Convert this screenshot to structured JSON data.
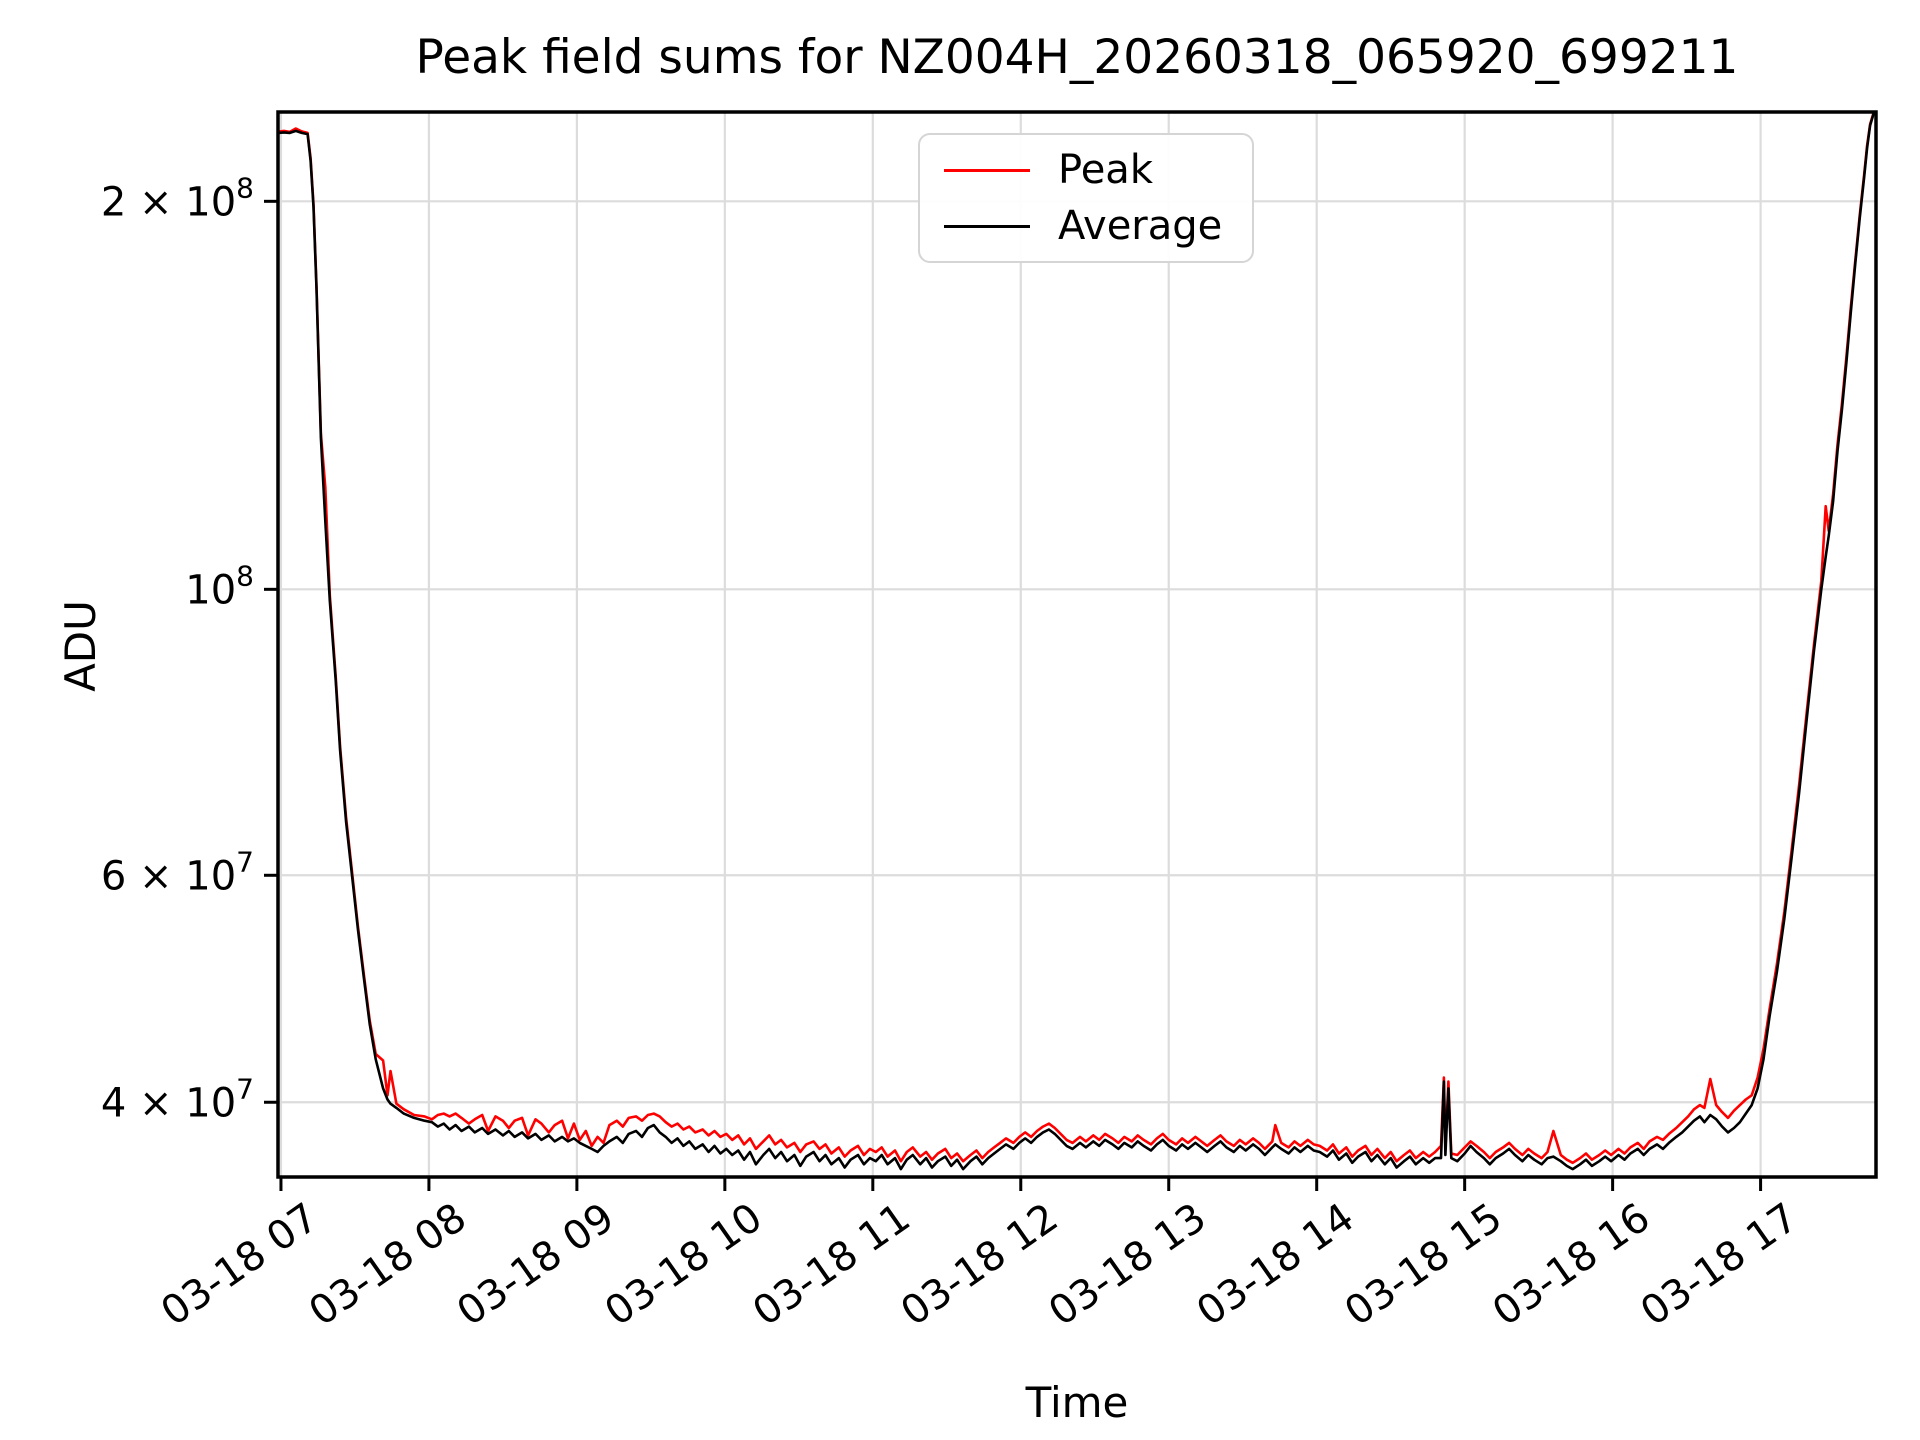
{
  "figure": {
    "title": "Peak field sums for NZ004H_20260318_065920_699211"
  },
  "axes": {
    "xlabel": "Time",
    "ylabel": "ADU"
  },
  "legend": {
    "entries": [
      {
        "label": "Peak",
        "color": "#ff0000"
      },
      {
        "label": "Average",
        "color": "#000000"
      }
    ]
  },
  "colors": {
    "peak_line": "#ff0000",
    "average_line": "#000000",
    "grid": "#dcdcdc",
    "spine": "#000000",
    "background": "#ffffff"
  },
  "chart_data": {
    "type": "line",
    "title": "Peak field sums for NZ004H_20260318_065920_699211",
    "xlabel": "Time",
    "ylabel": "ADU",
    "yscale": "log",
    "grid": true,
    "legend_position": "upper center",
    "x_unit": "hour of day on 2026-03-18",
    "xlim": [
      6.98,
      17.78
    ],
    "ylim": [
      35000000,
      234600000
    ],
    "x_ticks": [
      {
        "t": 7,
        "label": "03-18 07"
      },
      {
        "t": 8,
        "label": "03-18 08"
      },
      {
        "t": 9,
        "label": "03-18 09"
      },
      {
        "t": 10,
        "label": "03-18 10"
      },
      {
        "t": 11,
        "label": "03-18 11"
      },
      {
        "t": 12,
        "label": "03-18 12"
      },
      {
        "t": 13,
        "label": "03-18 13"
      },
      {
        "t": 14,
        "label": "03-18 14"
      },
      {
        "t": 15,
        "label": "03-18 15"
      },
      {
        "t": 16,
        "label": "03-18 16"
      },
      {
        "t": 17,
        "label": "03-18 17"
      }
    ],
    "y_ticks": [
      {
        "value": 200000000,
        "label": "2 × 10⁸",
        "base": "2 × 10",
        "exp": "8"
      },
      {
        "value": 100000000,
        "label": "10⁸",
        "base": "10",
        "exp": "8"
      },
      {
        "value": 60000000,
        "label": "6 × 10⁷",
        "base": "6 × 10",
        "exp": "7"
      },
      {
        "value": 40000000,
        "label": "4 × 10⁷",
        "base": "4 × 10",
        "exp": "7"
      }
    ],
    "value_scale": 10000000,
    "columns": [
      "time_hours",
      "average",
      "peak"
    ],
    "series": [
      {
        "name": "Peak",
        "color": "#ff0000",
        "column": 2
      },
      {
        "name": "Average",
        "color": "#000000",
        "column": 1
      }
    ],
    "points": [
      [
        6.98,
        22.6,
        22.65
      ],
      [
        7.02,
        22.62,
        22.68
      ],
      [
        7.06,
        22.6,
        22.64
      ],
      [
        7.1,
        22.68,
        22.78
      ],
      [
        7.14,
        22.6,
        22.66
      ],
      [
        7.18,
        22.55,
        22.6
      ],
      [
        7.2,
        21.5,
        21.6
      ],
      [
        7.22,
        19.8,
        19.9
      ],
      [
        7.24,
        17.1,
        17.2
      ],
      [
        7.27,
        13.1,
        13.2
      ],
      [
        7.3,
        11.3,
        12.0
      ],
      [
        7.33,
        9.8,
        9.9
      ],
      [
        7.37,
        8.5,
        8.56
      ],
      [
        7.4,
        7.5,
        7.55
      ],
      [
        7.44,
        6.6,
        6.65
      ],
      [
        7.48,
        6.0,
        6.04
      ],
      [
        7.52,
        5.45,
        5.48
      ],
      [
        7.56,
        5.0,
        5.03
      ],
      [
        7.6,
        4.6,
        4.63
      ],
      [
        7.64,
        4.32,
        4.36
      ],
      [
        7.69,
        4.1,
        4.31
      ],
      [
        7.72,
        4.02,
        4.05
      ],
      [
        7.74,
        3.99,
        4.23
      ],
      [
        7.78,
        3.96,
        3.99
      ],
      [
        7.83,
        3.92,
        3.95
      ],
      [
        7.9,
        3.89,
        3.91
      ],
      [
        7.97,
        3.87,
        3.9
      ],
      [
        8.02,
        3.86,
        3.88
      ],
      [
        8.06,
        3.83,
        3.91
      ],
      [
        8.1,
        3.85,
        3.92
      ],
      [
        8.14,
        3.81,
        3.9
      ],
      [
        8.18,
        3.84,
        3.92
      ],
      [
        8.22,
        3.8,
        3.89
      ],
      [
        8.27,
        3.83,
        3.85
      ],
      [
        8.31,
        3.79,
        3.88
      ],
      [
        8.36,
        3.82,
        3.91
      ],
      [
        8.4,
        3.78,
        3.8
      ],
      [
        8.45,
        3.81,
        3.9
      ],
      [
        8.5,
        3.77,
        3.87
      ],
      [
        8.54,
        3.8,
        3.82
      ],
      [
        8.58,
        3.76,
        3.87
      ],
      [
        8.63,
        3.79,
        3.89
      ],
      [
        8.67,
        3.75,
        3.77
      ],
      [
        8.72,
        3.78,
        3.88
      ],
      [
        8.76,
        3.74,
        3.85
      ],
      [
        8.81,
        3.77,
        3.79
      ],
      [
        8.85,
        3.73,
        3.84
      ],
      [
        8.9,
        3.76,
        3.87
      ],
      [
        8.94,
        3.73,
        3.75
      ],
      [
        8.98,
        3.75,
        3.85
      ],
      [
        9.02,
        3.72,
        3.74
      ],
      [
        9.06,
        3.7,
        3.8
      ],
      [
        9.1,
        3.68,
        3.7
      ],
      [
        9.14,
        3.66,
        3.76
      ],
      [
        9.18,
        3.7,
        3.72
      ],
      [
        9.22,
        3.73,
        3.84
      ],
      [
        9.27,
        3.76,
        3.87
      ],
      [
        9.31,
        3.72,
        3.83
      ],
      [
        9.35,
        3.78,
        3.89
      ],
      [
        9.4,
        3.8,
        3.9
      ],
      [
        9.44,
        3.76,
        3.87
      ],
      [
        9.48,
        3.82,
        3.91
      ],
      [
        9.52,
        3.84,
        3.92
      ],
      [
        9.56,
        3.79,
        3.9
      ],
      [
        9.6,
        3.76,
        3.86
      ],
      [
        9.64,
        3.72,
        3.83
      ],
      [
        9.68,
        3.75,
        3.85
      ],
      [
        9.72,
        3.7,
        3.81
      ],
      [
        9.76,
        3.73,
        3.83
      ],
      [
        9.8,
        3.68,
        3.79
      ],
      [
        9.85,
        3.71,
        3.81
      ],
      [
        9.89,
        3.66,
        3.77
      ],
      [
        9.93,
        3.7,
        3.8
      ],
      [
        9.97,
        3.65,
        3.76
      ],
      [
        10.01,
        3.68,
        3.78
      ],
      [
        10.05,
        3.64,
        3.74
      ],
      [
        10.09,
        3.67,
        3.77
      ],
      [
        10.13,
        3.61,
        3.71
      ],
      [
        10.17,
        3.66,
        3.75
      ],
      [
        10.21,
        3.58,
        3.68
      ],
      [
        10.26,
        3.64,
        3.73
      ],
      [
        10.3,
        3.68,
        3.77
      ],
      [
        10.34,
        3.62,
        3.71
      ],
      [
        10.38,
        3.66,
        3.74
      ],
      [
        10.42,
        3.6,
        3.69
      ],
      [
        10.47,
        3.64,
        3.72
      ],
      [
        10.51,
        3.57,
        3.66
      ],
      [
        10.55,
        3.63,
        3.71
      ],
      [
        10.6,
        3.66,
        3.73
      ],
      [
        10.64,
        3.6,
        3.68
      ],
      [
        10.68,
        3.64,
        3.71
      ],
      [
        10.72,
        3.58,
        3.65
      ],
      [
        10.77,
        3.62,
        3.69
      ],
      [
        10.81,
        3.56,
        3.63
      ],
      [
        10.85,
        3.61,
        3.67
      ],
      [
        10.9,
        3.64,
        3.7
      ],
      [
        10.94,
        3.58,
        3.64
      ],
      [
        10.98,
        3.62,
        3.68
      ],
      [
        11.02,
        3.6,
        3.66
      ],
      [
        11.06,
        3.64,
        3.69
      ],
      [
        11.1,
        3.58,
        3.63
      ],
      [
        11.15,
        3.62,
        3.67
      ],
      [
        11.19,
        3.55,
        3.6
      ],
      [
        11.23,
        3.61,
        3.66
      ],
      [
        11.27,
        3.64,
        3.69
      ],
      [
        11.32,
        3.58,
        3.63
      ],
      [
        11.36,
        3.62,
        3.66
      ],
      [
        11.4,
        3.56,
        3.61
      ],
      [
        11.44,
        3.6,
        3.65
      ],
      [
        11.49,
        3.63,
        3.68
      ],
      [
        11.53,
        3.57,
        3.62
      ],
      [
        11.57,
        3.61,
        3.65
      ],
      [
        11.61,
        3.55,
        3.6
      ],
      [
        11.66,
        3.6,
        3.64
      ],
      [
        11.7,
        3.63,
        3.67
      ],
      [
        11.74,
        3.58,
        3.62
      ],
      [
        11.78,
        3.62,
        3.66
      ],
      [
        11.82,
        3.65,
        3.69
      ],
      [
        11.86,
        3.68,
        3.72
      ],
      [
        11.9,
        3.71,
        3.75
      ],
      [
        11.95,
        3.68,
        3.72
      ],
      [
        11.99,
        3.72,
        3.76
      ],
      [
        12.03,
        3.75,
        3.79
      ],
      [
        12.07,
        3.72,
        3.76
      ],
      [
        12.11,
        3.76,
        3.8
      ],
      [
        12.15,
        3.79,
        3.83
      ],
      [
        12.19,
        3.81,
        3.85
      ],
      [
        12.23,
        3.78,
        3.82
      ],
      [
        12.27,
        3.74,
        3.78
      ],
      [
        12.31,
        3.7,
        3.74
      ],
      [
        12.35,
        3.68,
        3.72
      ],
      [
        12.4,
        3.72,
        3.76
      ],
      [
        12.44,
        3.69,
        3.73
      ],
      [
        12.49,
        3.73,
        3.77
      ],
      [
        12.53,
        3.7,
        3.74
      ],
      [
        12.57,
        3.74,
        3.78
      ],
      [
        12.62,
        3.71,
        3.75
      ],
      [
        12.66,
        3.68,
        3.72
      ],
      [
        12.7,
        3.72,
        3.76
      ],
      [
        12.75,
        3.69,
        3.73
      ],
      [
        12.79,
        3.73,
        3.77
      ],
      [
        12.83,
        3.7,
        3.74
      ],
      [
        12.88,
        3.67,
        3.71
      ],
      [
        12.92,
        3.71,
        3.75
      ],
      [
        12.96,
        3.74,
        3.78
      ],
      [
        13.0,
        3.7,
        3.74
      ],
      [
        13.05,
        3.67,
        3.71
      ],
      [
        13.09,
        3.71,
        3.75
      ],
      [
        13.13,
        3.68,
        3.72
      ],
      [
        13.18,
        3.72,
        3.76
      ],
      [
        13.22,
        3.69,
        3.73
      ],
      [
        13.26,
        3.66,
        3.7
      ],
      [
        13.31,
        3.7,
        3.74
      ],
      [
        13.35,
        3.73,
        3.77
      ],
      [
        13.39,
        3.69,
        3.73
      ],
      [
        13.44,
        3.66,
        3.7
      ],
      [
        13.48,
        3.7,
        3.74
      ],
      [
        13.52,
        3.67,
        3.71
      ],
      [
        13.57,
        3.71,
        3.75
      ],
      [
        13.61,
        3.68,
        3.72
      ],
      [
        13.65,
        3.64,
        3.68
      ],
      [
        13.7,
        3.69,
        3.73
      ],
      [
        13.72,
        3.71,
        3.84
      ],
      [
        13.76,
        3.68,
        3.72
      ],
      [
        13.81,
        3.65,
        3.69
      ],
      [
        13.85,
        3.69,
        3.73
      ],
      [
        13.89,
        3.66,
        3.7
      ],
      [
        13.94,
        3.7,
        3.74
      ],
      [
        13.98,
        3.67,
        3.71
      ],
      [
        14.02,
        3.66,
        3.7
      ],
      [
        14.07,
        3.63,
        3.67
      ],
      [
        14.11,
        3.67,
        3.71
      ],
      [
        14.15,
        3.61,
        3.65
      ],
      [
        14.2,
        3.65,
        3.69
      ],
      [
        14.24,
        3.59,
        3.63
      ],
      [
        14.28,
        3.63,
        3.67
      ],
      [
        14.33,
        3.66,
        3.7
      ],
      [
        14.37,
        3.6,
        3.64
      ],
      [
        14.41,
        3.64,
        3.68
      ],
      [
        14.46,
        3.58,
        3.62
      ],
      [
        14.5,
        3.62,
        3.66
      ],
      [
        14.54,
        3.56,
        3.6
      ],
      [
        14.59,
        3.6,
        3.64
      ],
      [
        14.63,
        3.63,
        3.67
      ],
      [
        14.67,
        3.58,
        3.62
      ],
      [
        14.72,
        3.62,
        3.66
      ],
      [
        14.76,
        3.59,
        3.63
      ],
      [
        14.8,
        3.62,
        3.66
      ],
      [
        14.84,
        3.62,
        3.7
      ],
      [
        14.86,
        4.15,
        4.18
      ],
      [
        14.87,
        3.64,
        3.68
      ],
      [
        14.89,
        4.1,
        4.15
      ],
      [
        14.91,
        3.62,
        3.65
      ],
      [
        14.95,
        3.6,
        3.64
      ],
      [
        15.0,
        3.65,
        3.69
      ],
      [
        15.04,
        3.7,
        3.73
      ],
      [
        15.08,
        3.66,
        3.7
      ],
      [
        15.13,
        3.62,
        3.66
      ],
      [
        15.17,
        3.58,
        3.62
      ],
      [
        15.21,
        3.62,
        3.66
      ],
      [
        15.26,
        3.65,
        3.69
      ],
      [
        15.3,
        3.68,
        3.72
      ],
      [
        15.34,
        3.64,
        3.68
      ],
      [
        15.39,
        3.6,
        3.64
      ],
      [
        15.43,
        3.64,
        3.68
      ],
      [
        15.47,
        3.61,
        3.65
      ],
      [
        15.52,
        3.58,
        3.62
      ],
      [
        15.56,
        3.62,
        3.66
      ],
      [
        15.6,
        3.63,
        3.8
      ],
      [
        15.65,
        3.6,
        3.64
      ],
      [
        15.69,
        3.57,
        3.61
      ],
      [
        15.73,
        3.55,
        3.59
      ],
      [
        15.78,
        3.58,
        3.62
      ],
      [
        15.82,
        3.61,
        3.65
      ],
      [
        15.86,
        3.57,
        3.61
      ],
      [
        15.91,
        3.6,
        3.64
      ],
      [
        15.95,
        3.63,
        3.67
      ],
      [
        15.99,
        3.6,
        3.64
      ],
      [
        16.04,
        3.64,
        3.68
      ],
      [
        16.08,
        3.61,
        3.65
      ],
      [
        16.12,
        3.65,
        3.69
      ],
      [
        16.17,
        3.68,
        3.72
      ],
      [
        16.21,
        3.64,
        3.68
      ],
      [
        16.25,
        3.68,
        3.73
      ],
      [
        16.3,
        3.71,
        3.76
      ],
      [
        16.34,
        3.68,
        3.74
      ],
      [
        16.38,
        3.72,
        3.78
      ],
      [
        16.43,
        3.76,
        3.82
      ],
      [
        16.47,
        3.79,
        3.86
      ],
      [
        16.51,
        3.83,
        3.9
      ],
      [
        16.55,
        3.87,
        3.95
      ],
      [
        16.59,
        3.9,
        3.98
      ],
      [
        16.62,
        3.86,
        3.96
      ],
      [
        16.66,
        3.91,
        4.17
      ],
      [
        16.7,
        3.88,
        3.98
      ],
      [
        16.74,
        3.83,
        3.93
      ],
      [
        16.78,
        3.79,
        3.89
      ],
      [
        16.82,
        3.82,
        3.94
      ],
      [
        16.86,
        3.86,
        3.98
      ],
      [
        16.9,
        3.92,
        4.02
      ],
      [
        16.94,
        3.98,
        4.05
      ],
      [
        16.98,
        4.1,
        4.18
      ],
      [
        17.02,
        4.32,
        4.4
      ],
      [
        17.06,
        4.66,
        4.72
      ],
      [
        17.11,
        5.05,
        5.12
      ],
      [
        17.16,
        5.55,
        5.62
      ],
      [
        17.21,
        6.2,
        6.28
      ],
      [
        17.26,
        6.95,
        7.05
      ],
      [
        17.31,
        7.9,
        8.0
      ],
      [
        17.36,
        8.95,
        9.05
      ],
      [
        17.41,
        10.0,
        10.15
      ],
      [
        17.44,
        10.6,
        11.6
      ],
      [
        17.46,
        11.0,
        11.1
      ],
      [
        17.49,
        11.7,
        11.85
      ],
      [
        17.52,
        12.8,
        12.95
      ],
      [
        17.55,
        13.8,
        13.95
      ],
      [
        17.58,
        15.0,
        15.15
      ],
      [
        17.61,
        16.4,
        16.55
      ],
      [
        17.64,
        17.9,
        18.0
      ],
      [
        17.67,
        19.4,
        19.5
      ],
      [
        17.7,
        20.9,
        21.0
      ],
      [
        17.72,
        22.0,
        22.1
      ],
      [
        17.74,
        22.9,
        22.95
      ],
      [
        17.76,
        23.3,
        23.35
      ],
      [
        17.78,
        23.7,
        23.75
      ]
    ]
  }
}
